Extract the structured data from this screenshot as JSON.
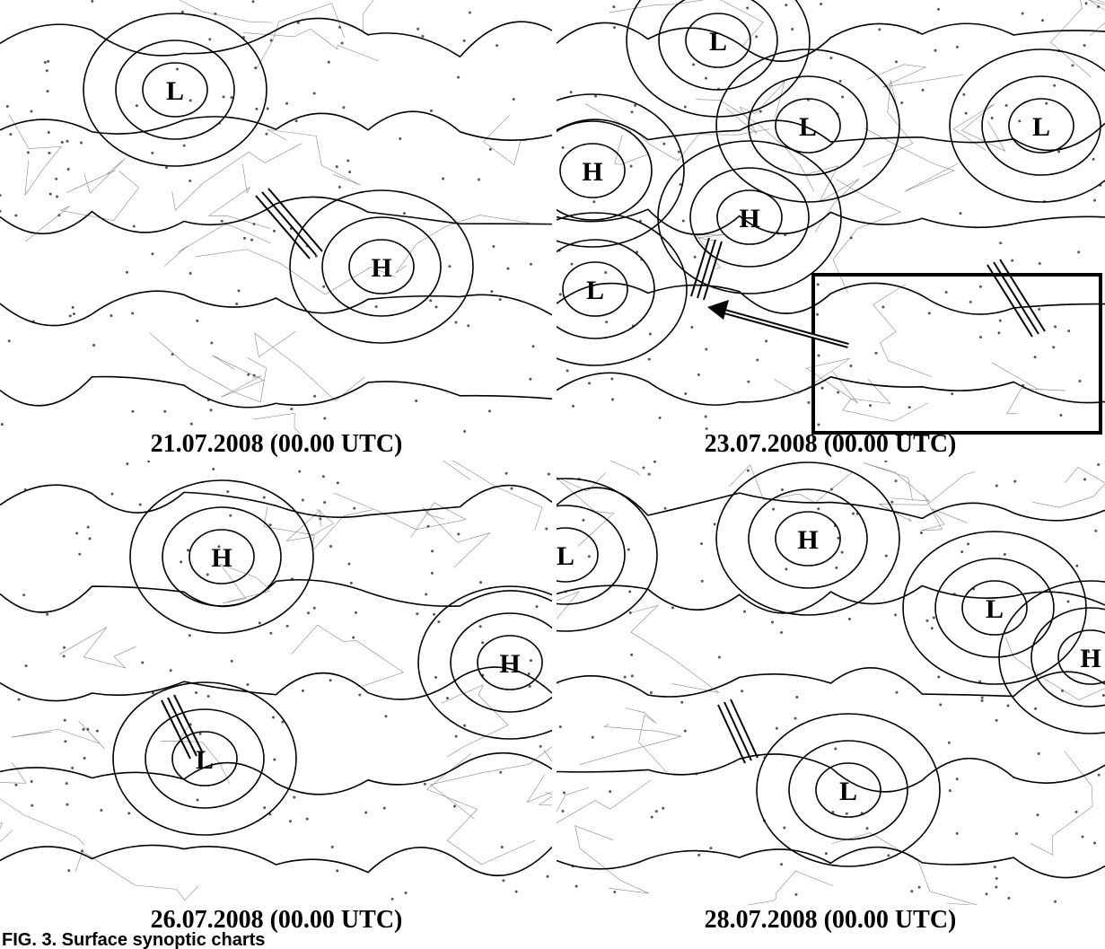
{
  "panels": [
    {
      "date": "21.07.2008 (00.00 UTC)",
      "systems": [
        "L",
        "H"
      ]
    },
    {
      "date": "23.07.2008 (00.00 UTC)",
      "systems": [
        "L",
        "L",
        "L",
        "H",
        "H",
        "L"
      ]
    },
    {
      "date": "26.07.2008 (00.00 UTC)",
      "systems": [
        "H",
        "H",
        "L"
      ]
    },
    {
      "date": "28.07.2008 (00.00 UTC)",
      "systems": [
        "H",
        "L",
        "L",
        "H",
        "L"
      ]
    }
  ],
  "caption": "FIG. 3. Surface synoptic charts"
}
